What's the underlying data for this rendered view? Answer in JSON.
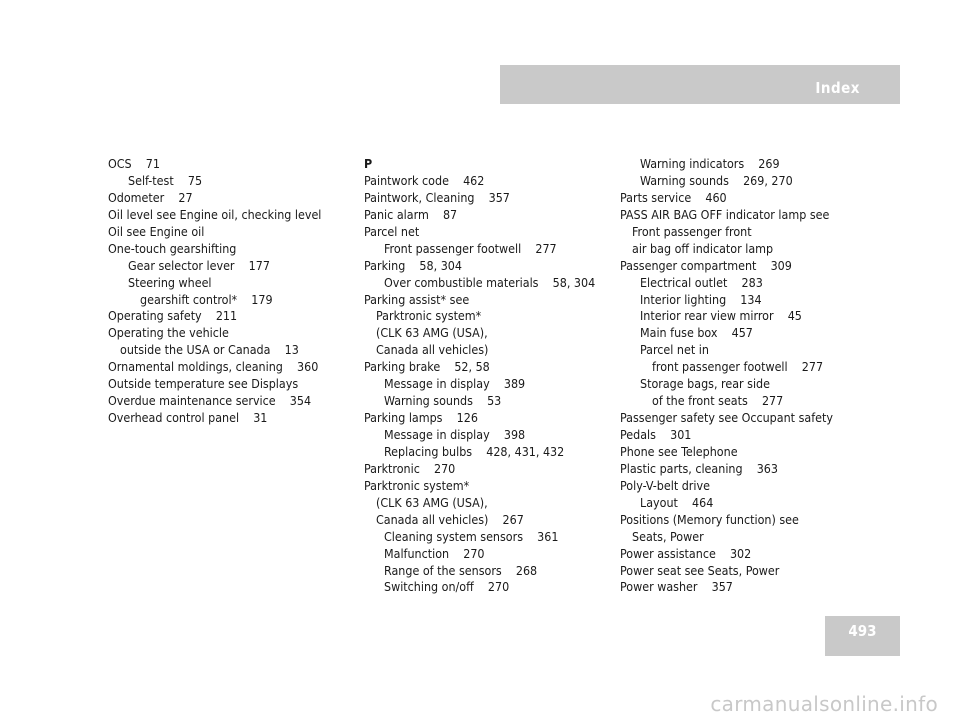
{
  "header": {
    "title": "Index"
  },
  "page_number": "493",
  "watermark": "carmanualsonline.info",
  "columns": [
    {
      "entries": [
        {
          "text": "OCS    71",
          "level": 0
        },
        {
          "text": "Self-test    75",
          "level": 2
        },
        {
          "text": "Odometer    27",
          "level": 0
        },
        {
          "text": "Oil level see Engine oil, checking level",
          "level": 0
        },
        {
          "text": "Oil see Engine oil",
          "level": 0
        },
        {
          "text": "One-touch gearshifting",
          "level": 0
        },
        {
          "text": "Gear selector lever    177",
          "level": 2
        },
        {
          "text": "Steering wheel",
          "level": 2
        },
        {
          "text": "gearshift control*    179",
          "level": 3
        },
        {
          "text": "Operating safety    211",
          "level": 0
        },
        {
          "text": "Operating the vehicle",
          "level": 0
        },
        {
          "text": "outside the USA or Canada    13",
          "level": 1
        },
        {
          "text": "Ornamental moldings, cleaning    360",
          "level": 0
        },
        {
          "text": "Outside temperature see Displays",
          "level": 0
        },
        {
          "text": "Overdue maintenance service    354",
          "level": 0
        },
        {
          "text": "Overhead control panel    31",
          "level": 0
        }
      ]
    },
    {
      "entries": [
        {
          "text": "P",
          "level": "h"
        },
        {
          "text": "Paintwork code    462",
          "level": 0
        },
        {
          "text": "Paintwork, Cleaning    357",
          "level": 0
        },
        {
          "text": "Panic alarm    87",
          "level": 0
        },
        {
          "text": "Parcel net",
          "level": 0
        },
        {
          "text": "Front passenger footwell    277",
          "level": 2
        },
        {
          "text": "Parking    58, 304",
          "level": 0
        },
        {
          "text": "Over combustible materials    58, 304",
          "level": 2
        },
        {
          "text": "Parking assist* see",
          "level": 0
        },
        {
          "text": "Parktronic system*",
          "level": 1
        },
        {
          "text": "(CLK 63 AMG (USA),",
          "level": 1
        },
        {
          "text": "Canada all vehicles)",
          "level": 1
        },
        {
          "text": "Parking brake    52, 58",
          "level": 0
        },
        {
          "text": "Message in display    389",
          "level": 2
        },
        {
          "text": "Warning sounds    53",
          "level": 2
        },
        {
          "text": "Parking lamps    126",
          "level": 0
        },
        {
          "text": "Message in display    398",
          "level": 2
        },
        {
          "text": "Replacing bulbs    428, 431, 432",
          "level": 2
        },
        {
          "text": "Parktronic    270",
          "level": 0
        },
        {
          "text": "Parktronic system*",
          "level": 0
        },
        {
          "text": "(CLK 63 AMG (USA),",
          "level": 1
        },
        {
          "text": "Canada all vehicles)    267",
          "level": 1
        },
        {
          "text": "Cleaning system sensors    361",
          "level": 2
        },
        {
          "text": "Malfunction    270",
          "level": 2
        },
        {
          "text": "Range of the sensors    268",
          "level": 2
        },
        {
          "text": "Switching on/off    270",
          "level": 2
        }
      ]
    },
    {
      "entries": [
        {
          "text": "Warning indicators    269",
          "level": 2
        },
        {
          "text": "Warning sounds    269, 270",
          "level": 2
        },
        {
          "text": "Parts service    460",
          "level": 0
        },
        {
          "text": "PASS AIR BAG OFF indicator lamp see",
          "level": 0
        },
        {
          "text": "Front passenger front",
          "level": 1
        },
        {
          "text": "air bag off indicator lamp",
          "level": 1
        },
        {
          "text": "Passenger compartment    309",
          "level": 0
        },
        {
          "text": "Electrical outlet    283",
          "level": 2
        },
        {
          "text": "Interior lighting    134",
          "level": 2
        },
        {
          "text": "Interior rear view mirror    45",
          "level": 2
        },
        {
          "text": "Main fuse box    457",
          "level": 2
        },
        {
          "text": "Parcel net in",
          "level": 2
        },
        {
          "text": "front passenger footwell    277",
          "level": 3
        },
        {
          "text": "Storage bags, rear side",
          "level": 2
        },
        {
          "text": "of the front seats    277",
          "level": 3
        },
        {
          "text": "Passenger safety see Occupant safety",
          "level": 0
        },
        {
          "text": "Pedals    301",
          "level": 0
        },
        {
          "text": "Phone see Telephone",
          "level": 0
        },
        {
          "text": "Plastic parts, cleaning    363",
          "level": 0
        },
        {
          "text": "Poly-V-belt drive",
          "level": 0
        },
        {
          "text": "Layout    464",
          "level": 2
        },
        {
          "text": "Positions (Memory function) see",
          "level": 0
        },
        {
          "text": "Seats, Power",
          "level": 1
        },
        {
          "text": "Power assistance    302",
          "level": 0
        },
        {
          "text": "Power seat see Seats, Power",
          "level": 0
        },
        {
          "text": "Power washer    357",
          "level": 0
        }
      ]
    }
  ]
}
